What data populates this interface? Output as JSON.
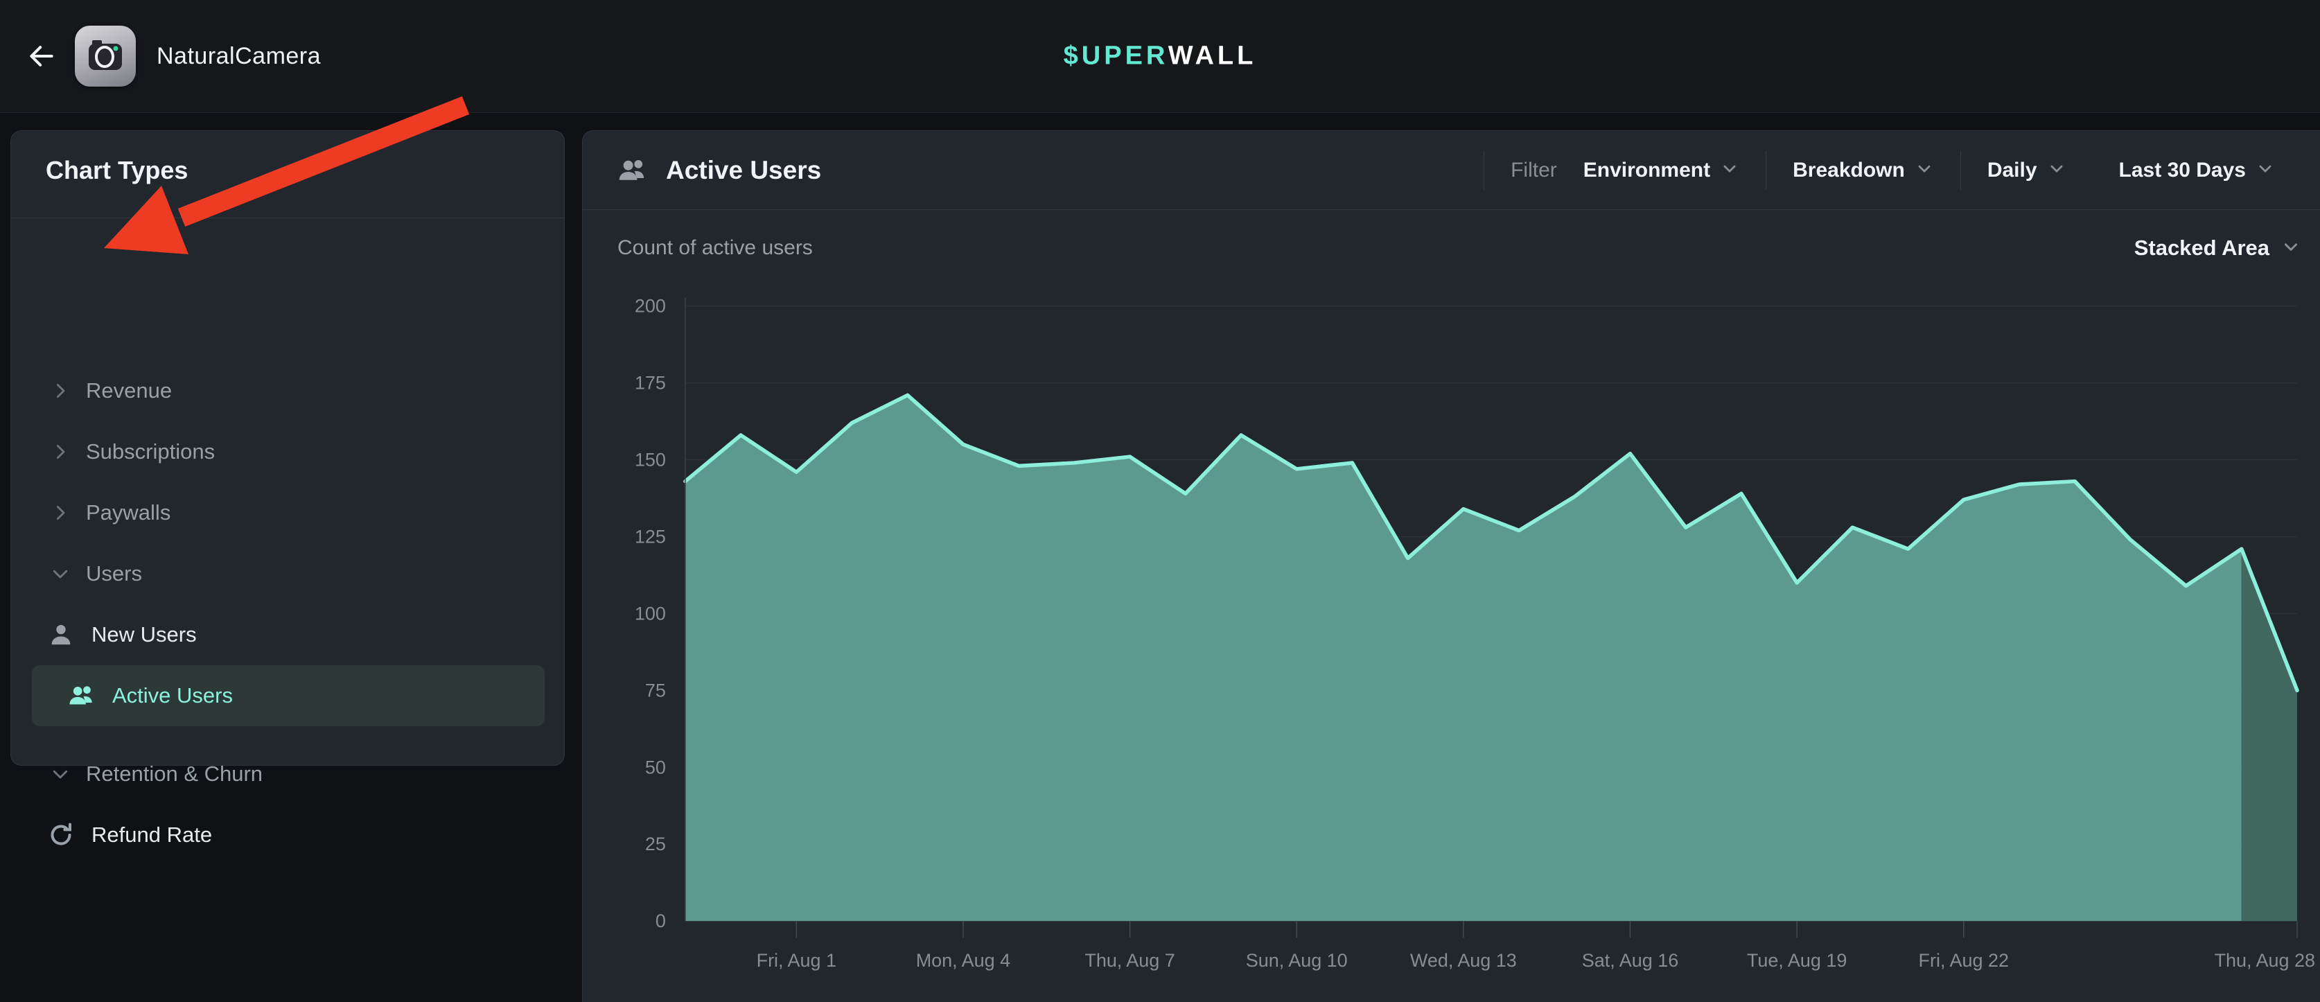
{
  "topbar": {
    "app_name": "NaturalCamera",
    "logo_teal": "$UPER",
    "logo_white": "WALL"
  },
  "sidebar": {
    "title": "Chart Types",
    "items": [
      {
        "type": "group",
        "chevron": "right",
        "label": "Revenue"
      },
      {
        "type": "group",
        "chevron": "right",
        "label": "Subscriptions"
      },
      {
        "type": "group",
        "chevron": "right",
        "label": "Paywalls"
      },
      {
        "type": "group",
        "chevron": "down",
        "label": "Users"
      },
      {
        "type": "leaf",
        "icon": "user",
        "label": "New Users",
        "selected": false
      },
      {
        "type": "leaf",
        "icon": "users",
        "label": "Active Users",
        "selected": true
      },
      {
        "type": "group",
        "chevron": "down",
        "label": "Retention & Churn"
      },
      {
        "type": "leaf",
        "icon": "refresh",
        "label": "Refund Rate",
        "selected": false
      }
    ]
  },
  "chart_header": {
    "title": "Active Users",
    "controls": [
      {
        "kind": "divider"
      },
      {
        "kind": "label",
        "label": "Filter"
      },
      {
        "kind": "dropdown",
        "label": "Environment"
      },
      {
        "kind": "divider"
      },
      {
        "kind": "dropdown",
        "label": "Breakdown"
      },
      {
        "kind": "divider"
      },
      {
        "kind": "dropdown",
        "label": "Daily"
      },
      {
        "kind": "dropdown",
        "label": "Last 30 Days"
      }
    ]
  },
  "subheader": {
    "left": "Count of active users",
    "chart_type": "Stacked Area"
  },
  "chart_data": {
    "type": "area",
    "title": "Count of active users",
    "legend": "none",
    "grid": "horizontal",
    "ylim": [
      0,
      200
    ],
    "y_ticks": [
      0,
      25,
      50,
      75,
      100,
      125,
      150,
      175,
      200
    ],
    "dates": [
      "Wed, Jul 30",
      "Thu, Jul 31",
      "Fri, Aug 1",
      "Sat, Aug 2",
      "Sun, Aug 3",
      "Mon, Aug 4",
      "Tue, Aug 5",
      "Wed, Aug 6",
      "Thu, Aug 7",
      "Fri, Aug 8",
      "Sat, Aug 9",
      "Sun, Aug 10",
      "Mon, Aug 11",
      "Tue, Aug 12",
      "Wed, Aug 13",
      "Thu, Aug 14",
      "Fri, Aug 15",
      "Sat, Aug 16",
      "Sun, Aug 17",
      "Mon, Aug 18",
      "Tue, Aug 19",
      "Wed, Aug 20",
      "Thu, Aug 21",
      "Fri, Aug 22",
      "Sat, Aug 23",
      "Sun, Aug 24",
      "Mon, Aug 25",
      "Tue, Aug 26",
      "Wed, Aug 27",
      "Thu, Aug 28"
    ],
    "x_tick_indices": [
      2,
      5,
      8,
      11,
      14,
      17,
      20,
      23,
      29
    ],
    "x_tick_labels": [
      "Fri, Aug 1",
      "Mon, Aug 4",
      "Thu, Aug 7",
      "Sun, Aug 10",
      "Wed, Aug 13",
      "Sat, Aug 16",
      "Tue, Aug 19",
      "Fri, Aug 22",
      "Thu, Aug 28"
    ],
    "series": [
      {
        "name": "Active Users",
        "values": [
          143,
          158,
          146,
          162,
          171,
          155,
          148,
          149,
          151,
          139,
          158,
          147,
          149,
          118,
          134,
          127,
          138,
          152,
          128,
          139,
          110,
          128,
          121,
          137,
          142,
          143,
          124,
          109,
          121,
          75
        ]
      }
    ],
    "last_segment_muted": true
  },
  "annotation": {
    "type": "arrow",
    "points_to": "Revenue"
  },
  "colors": {
    "accent_teal": "#63E8D2",
    "line": "#8DEEDC",
    "fill": "#5C9A90",
    "fill_muted": "#40685F",
    "selected_bg": "#2C3937",
    "selected_text": "#8FF0DE",
    "arrow": "#EE3B24",
    "grid": "#2D3137",
    "axis": "#3C4149",
    "tick": "#454A52",
    "tick_label": "#868D95",
    "muted_text": "#98A0A8"
  }
}
